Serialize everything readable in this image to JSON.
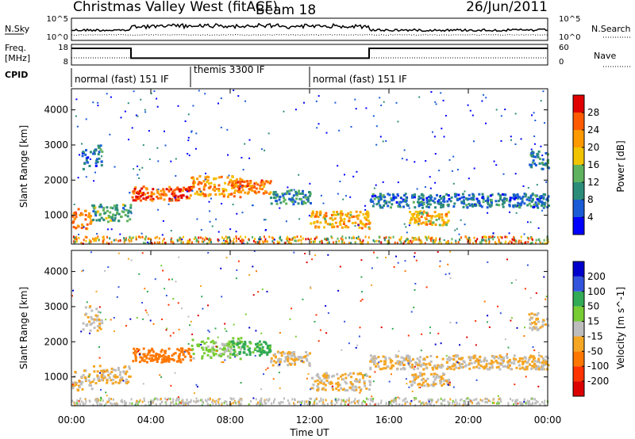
{
  "header": {
    "station": "Christmas Valley West (fitACF)",
    "beam": "Beam 18",
    "date": "26/Jun/2011"
  },
  "chart_data": {
    "type": "heatmap",
    "time_axis": {
      "label": "Time UT",
      "ticks": [
        "00:00",
        "04:00",
        "08:00",
        "12:00",
        "16:00",
        "20:00",
        "00:00"
      ],
      "range_hours": [
        0,
        24
      ]
    },
    "noise_panel": {
      "left_label": "N.Sky",
      "right_label": "N.Search",
      "left_ticks": [
        "10^5",
        "10^0"
      ],
      "right_ticks": [
        "10^5",
        "10^0"
      ]
    },
    "freq_panel": {
      "left_label_1": "Freq.",
      "left_label_2": "[MHz]",
      "right_label": "Nave",
      "left_ticks": [
        "18",
        "8"
      ],
      "right_ticks": [
        "60",
        "0"
      ],
      "freq_steps": [
        {
          "from": 0,
          "to": 3.0,
          "value": 16.5
        },
        {
          "from": 3.0,
          "to": 15.0,
          "value": 10.3
        },
        {
          "from": 15.0,
          "to": 24,
          "value": 16.5
        }
      ]
    },
    "cpid": {
      "label": "CPID",
      "segments": [
        {
          "from": 0,
          "to": 6.0,
          "text": "normal (fast) 151 IF"
        },
        {
          "from": 6.0,
          "to": 12.0,
          "text": "themis 3300 IF"
        },
        {
          "from": 12.0,
          "to": 24,
          "text": "normal (fast) 151 IF"
        }
      ]
    },
    "power_panel": {
      "ylabel": "Slant Range [km]",
      "yticks": [
        "4000",
        "3000",
        "2000",
        "1000"
      ],
      "yrange_km": [
        180,
        4600
      ],
      "colorbar_label": "Power [dB]",
      "colorbar_ticks": [
        "28",
        "24",
        "20",
        "16",
        "12",
        "8",
        "4"
      ],
      "colorbar_range": [
        0,
        32
      ]
    },
    "velocity_panel": {
      "ylabel": "Slant Range [km]",
      "yticks": [
        "4000",
        "3000",
        "2000",
        "1000"
      ],
      "yrange_km": [
        180,
        4600
      ],
      "colorbar_label": "Velocity [m s^-1]",
      "colorbar_ticks": [
        "200",
        "100",
        "50",
        "15",
        "-15",
        "-50",
        "-100",
        "-200"
      ]
    },
    "scatter_regions": [
      {
        "t": [
          0.0,
          1.0
        ],
        "r": [
          600,
          1200
        ],
        "pw": 24,
        "vel": -15
      },
      {
        "t": [
          1.0,
          3.0
        ],
        "r": [
          800,
          1300
        ],
        "pw": 12,
        "vel": -15
      },
      {
        "t": [
          3.0,
          6.0
        ],
        "r": [
          1400,
          1800
        ],
        "pw": 26,
        "vel": -70
      },
      {
        "t": [
          6.0,
          8.5
        ],
        "r": [
          1500,
          2100
        ],
        "pw": 22,
        "vel": 20
      },
      {
        "t": [
          8.0,
          10.0
        ],
        "r": [
          1600,
          2000
        ],
        "pw": 24,
        "vel": 60
      },
      {
        "t": [
          10.0,
          12.0
        ],
        "r": [
          1300,
          1700
        ],
        "pw": 10,
        "vel": -15
      },
      {
        "t": [
          12.0,
          15.0
        ],
        "r": [
          600,
          1100
        ],
        "pw": 20,
        "vel": -15
      },
      {
        "t": [
          15.0,
          24.0
        ],
        "r": [
          1200,
          1600
        ],
        "pw": 8,
        "vel": -15
      },
      {
        "t": [
          17.0,
          19.0
        ],
        "r": [
          700,
          1100
        ],
        "pw": 20,
        "vel": -15
      },
      {
        "t": [
          0.5,
          1.5
        ],
        "r": [
          2300,
          3000
        ],
        "pw": 8,
        "vel": -15
      },
      {
        "t": [
          23.0,
          24.0
        ],
        "r": [
          2300,
          2800
        ],
        "pw": 10,
        "vel": -15
      }
    ]
  }
}
